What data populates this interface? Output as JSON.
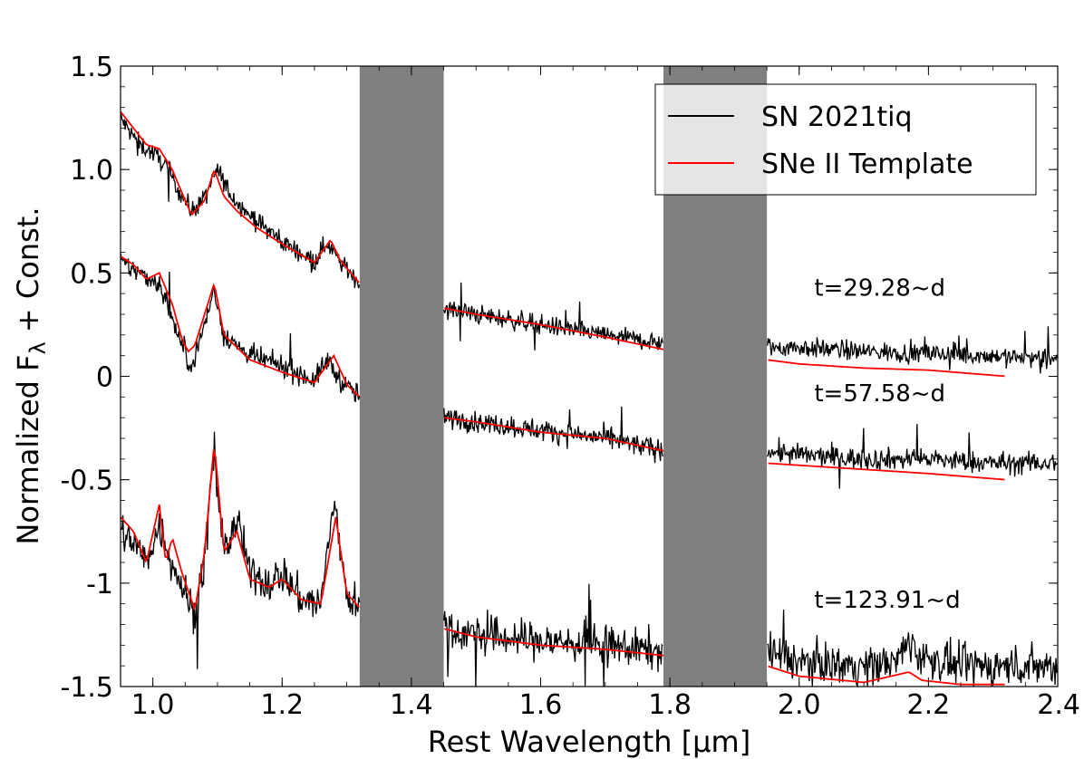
{
  "chart_data": {
    "type": "line",
    "xlabel": "Rest Wavelength [μm]",
    "ylabel_main": "Normalized F",
    "ylabel_sub": "λ",
    "ylabel_tail": " + Const.",
    "xlim": [
      0.95,
      2.4
    ],
    "ylim": [
      -1.5,
      1.5
    ],
    "x_ticks": [
      1.0,
      1.2,
      1.4,
      1.6,
      1.8,
      2.0,
      2.2,
      2.4
    ],
    "x_tick_labels": [
      "1.0",
      "1.2",
      "1.4",
      "1.6",
      "1.8",
      "2.0",
      "2.2",
      "2.4"
    ],
    "y_ticks": [
      1.5,
      1.0,
      0.5,
      0,
      -0.5,
      -1,
      -1.5
    ],
    "y_tick_labels": [
      "1.5",
      "1.0",
      "0.5",
      "0",
      "-0.5",
      "-1",
      "-1.5"
    ],
    "telluric_bands": [
      {
        "x_start": 1.32,
        "x_end": 1.45
      },
      {
        "x_start": 1.79,
        "x_end": 1.95
      }
    ],
    "legend": {
      "location": "top-right",
      "entries": [
        {
          "label": "SN 2021tiq",
          "color": "#000000"
        },
        {
          "label": "SNe II Template",
          "color": "#ff0000"
        }
      ]
    },
    "series": [
      {
        "name": "SN 2021tiq t=29.28~d",
        "role": "observed",
        "epoch_label": "t=29.28~d",
        "label_pos": [
          1.97,
          0.39
        ],
        "noise": 0.045,
        "x": [
          0.95,
          0.96,
          0.98,
          1.0,
          1.02,
          1.04,
          1.06,
          1.08,
          1.1,
          1.12,
          1.15,
          1.2,
          1.25,
          1.27,
          1.29,
          1.32,
          1.45,
          1.5,
          1.6,
          1.7,
          1.79,
          1.95,
          2.0,
          2.1,
          2.2,
          2.3,
          2.4
        ],
        "y": [
          1.25,
          1.2,
          1.12,
          1.08,
          1.02,
          0.9,
          0.8,
          0.86,
          1.0,
          0.88,
          0.78,
          0.65,
          0.56,
          0.65,
          0.55,
          0.45,
          0.33,
          0.3,
          0.25,
          0.2,
          0.16,
          0.14,
          0.14,
          0.12,
          0.11,
          0.1,
          0.08
        ]
      },
      {
        "name": "SN 2021tiq t=57.58~d",
        "role": "observed",
        "epoch_label": "t=57.58~d",
        "label_pos": [
          1.97,
          -0.12
        ],
        "noise": 0.05,
        "x": [
          0.95,
          0.97,
          0.99,
          1.01,
          1.03,
          1.05,
          1.06,
          1.08,
          1.095,
          1.11,
          1.15,
          1.2,
          1.25,
          1.27,
          1.29,
          1.32,
          1.45,
          1.5,
          1.6,
          1.7,
          1.79,
          1.95,
          2.0,
          2.1,
          2.2,
          2.3,
          2.4
        ],
        "y": [
          0.55,
          0.52,
          0.48,
          0.45,
          0.28,
          0.1,
          0.05,
          0.25,
          0.42,
          0.2,
          0.1,
          0.05,
          -0.02,
          0.08,
          -0.02,
          -0.1,
          -0.2,
          -0.22,
          -0.26,
          -0.3,
          -0.36,
          -0.36,
          -0.38,
          -0.4,
          -0.4,
          -0.42,
          -0.42
        ]
      },
      {
        "name": "SN 2021tiq t=123.91~d",
        "role": "observed",
        "epoch_label": "t=123.91~d",
        "label_pos": [
          1.97,
          -1.12
        ],
        "noise": 0.09,
        "x": [
          0.95,
          0.97,
          0.99,
          1.01,
          1.03,
          1.05,
          1.065,
          1.08,
          1.095,
          1.11,
          1.13,
          1.15,
          1.18,
          1.2,
          1.23,
          1.26,
          1.28,
          1.3,
          1.32,
          1.45,
          1.5,
          1.6,
          1.7,
          1.79,
          1.95,
          2.0,
          2.1,
          2.15,
          2.17,
          2.19,
          2.25,
          2.4
        ],
        "y": [
          -0.75,
          -0.8,
          -0.9,
          -0.72,
          -0.9,
          -1.05,
          -1.15,
          -0.9,
          -0.35,
          -0.85,
          -0.7,
          -0.95,
          -1.0,
          -0.95,
          -1.08,
          -1.1,
          -0.6,
          -1.05,
          -1.12,
          -1.22,
          -1.25,
          -1.28,
          -1.3,
          -1.33,
          -1.33,
          -1.38,
          -1.4,
          -1.38,
          -1.28,
          -1.36,
          -1.4,
          -1.4
        ]
      },
      {
        "name": "SNe II Template (29.28 d)",
        "role": "template",
        "x": [
          0.95,
          0.97,
          0.99,
          1.01,
          1.03,
          1.05,
          1.06,
          1.08,
          1.095,
          1.11,
          1.13,
          1.16,
          1.2,
          1.25,
          1.275,
          1.29,
          1.32,
          1.45,
          1.5,
          1.6,
          1.7,
          1.79,
          1.95,
          2.0,
          2.1,
          2.2,
          2.32
        ],
        "y": [
          1.28,
          1.2,
          1.12,
          1.1,
          1.0,
          0.85,
          0.78,
          0.85,
          1.0,
          0.87,
          0.8,
          0.72,
          0.64,
          0.55,
          0.66,
          0.56,
          0.45,
          0.33,
          0.3,
          0.25,
          0.19,
          0.13,
          0.08,
          0.06,
          0.04,
          0.03,
          0.0
        ]
      },
      {
        "name": "SNe II Template (57.58 d)",
        "role": "template",
        "x": [
          0.95,
          0.97,
          0.99,
          1.01,
          1.03,
          1.045,
          1.055,
          1.065,
          1.08,
          1.095,
          1.11,
          1.15,
          1.2,
          1.25,
          1.28,
          1.3,
          1.32,
          1.45,
          1.5,
          1.6,
          1.7,
          1.79,
          1.95,
          2.0,
          2.1,
          2.2,
          2.32
        ],
        "y": [
          0.58,
          0.54,
          0.47,
          0.5,
          0.35,
          0.18,
          0.12,
          0.15,
          0.3,
          0.45,
          0.2,
          0.08,
          0.02,
          -0.03,
          0.1,
          -0.04,
          -0.1,
          -0.2,
          -0.22,
          -0.27,
          -0.3,
          -0.36,
          -0.42,
          -0.43,
          -0.45,
          -0.47,
          -0.5
        ]
      },
      {
        "name": "SNe II Template (123.91 d)",
        "role": "template",
        "x": [
          0.95,
          0.97,
          0.99,
          1.01,
          1.02,
          1.03,
          1.045,
          1.065,
          1.08,
          1.095,
          1.11,
          1.13,
          1.15,
          1.18,
          1.2,
          1.23,
          1.26,
          1.283,
          1.3,
          1.32,
          1.45,
          1.5,
          1.6,
          1.7,
          1.79,
          1.95,
          2.0,
          2.1,
          2.17,
          2.19,
          2.25,
          2.32
        ],
        "y": [
          -0.68,
          -0.75,
          -0.9,
          -0.62,
          -0.9,
          -0.78,
          -0.95,
          -1.13,
          -0.85,
          -0.32,
          -0.85,
          -0.75,
          -0.98,
          -1.02,
          -0.98,
          -1.08,
          -1.1,
          -0.68,
          -1.05,
          -1.12,
          -1.22,
          -1.26,
          -1.3,
          -1.32,
          -1.35,
          -1.4,
          -1.45,
          -1.48,
          -1.43,
          -1.47,
          -1.49,
          -1.49
        ]
      }
    ]
  }
}
